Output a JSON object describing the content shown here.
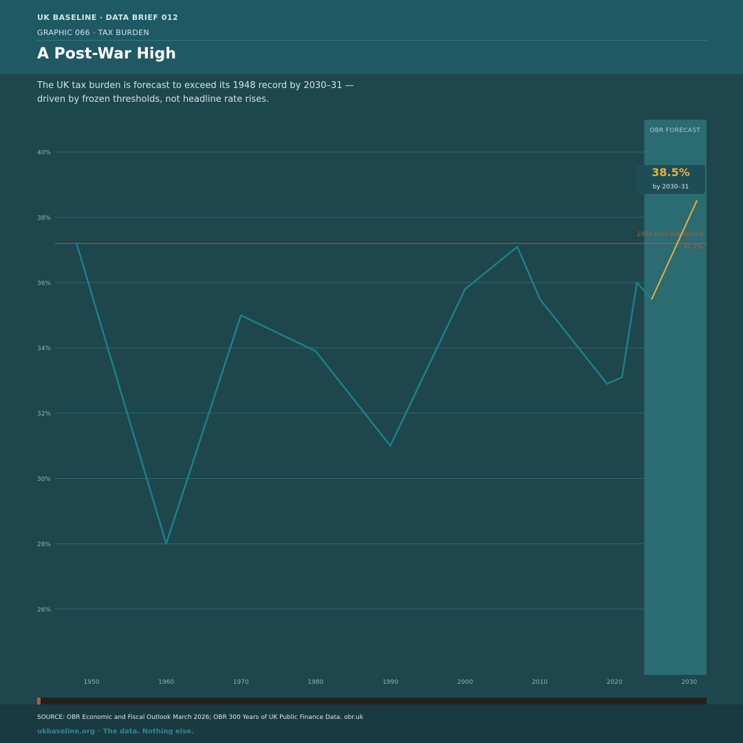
{
  "header": {
    "series": "UK BASELINE",
    "separator": "·",
    "brief": "DATA BRIEF 012",
    "graphic": "GRAPHIC 066",
    "topic": "TAX BURDEN",
    "title": "A Post-War High",
    "subtitle": "The UK tax burden is forecast to exceed its 1948 record by 2030–31 — driven by frozen thresholds, not headline rate rises."
  },
  "chart_data": {
    "type": "line",
    "title": "A Post-War High",
    "xlabel": "",
    "ylabel": "",
    "xlim": [
      1944,
      2032
    ],
    "ylim": [
      24,
      41
    ],
    "x_ticks": [
      1950,
      1960,
      1970,
      1980,
      1990,
      2000,
      2010,
      2020,
      2030
    ],
    "y_ticks": [
      26,
      28,
      30,
      32,
      34,
      36,
      38,
      40
    ],
    "y_tick_suffix": "%",
    "grid": true,
    "series": [
      {
        "color": "#1f7f8a",
        "x": [
          1948,
          1960,
          1970,
          1980,
          1990,
          2000,
          2007,
          2010,
          2019,
          2021,
          2023,
          2025
        ],
        "y": [
          37.2,
          28.0,
          35.0,
          33.9,
          31.0,
          35.8,
          37.1,
          35.5,
          32.9,
          33.1,
          36.0,
          35.5
        ]
      },
      {
        "color": "#e8b23a",
        "x": [
          2025,
          2031
        ],
        "y": [
          35.5,
          38.5
        ]
      }
    ],
    "forecast_band": {
      "from": 2024,
      "to": 2032,
      "label": "OBR FORECAST",
      "color": "#2b6b72"
    },
    "reference_line": {
      "value": 37.2,
      "label": "1948 post-war record",
      "value_label": "37.2%",
      "color": "#c0553b"
    },
    "callout": {
      "value": "38.5%",
      "label": "by 2030–31",
      "x": 2031,
      "y": 38.5
    }
  },
  "progress": {
    "value": 0.005,
    "color": "#c0553b"
  },
  "footer": {
    "source": "SOURCE: OBR Economic and Fiscal Outlook March 2026; OBR 300 Years of UK Public Finance Data. obr.uk",
    "site": "ukbaseline.org",
    "separator": "·",
    "tagline": "The data. Nothing else."
  }
}
